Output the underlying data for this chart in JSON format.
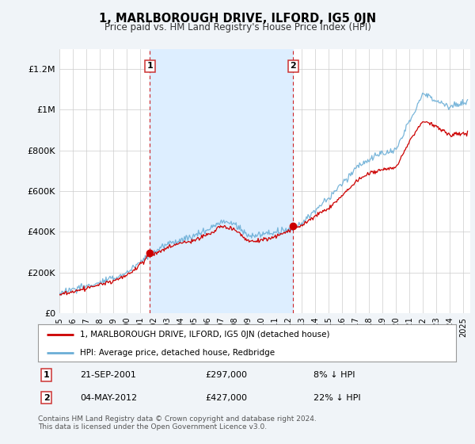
{
  "title": "1, MARLBOROUGH DRIVE, ILFORD, IG5 0JN",
  "subtitle": "Price paid vs. HM Land Registry's House Price Index (HPI)",
  "hpi_label": "HPI: Average price, detached house, Redbridge",
  "property_label": "1, MARLBOROUGH DRIVE, ILFORD, IG5 0JN (detached house)",
  "sale1_date": "21-SEP-2001",
  "sale1_price": 297000,
  "sale1_pct": "8% ↓ HPI",
  "sale1_year": 2001.72,
  "sale2_date": "04-MAY-2012",
  "sale2_price": 427000,
  "sale2_pct": "22% ↓ HPI",
  "sale2_year": 2012.35,
  "ylabel_ticks": [
    "£0",
    "£200K",
    "£400K",
    "£600K",
    "£800K",
    "£1M",
    "£1.2M"
  ],
  "ylabel_values": [
    0,
    200000,
    400000,
    600000,
    800000,
    1000000,
    1200000
  ],
  "ylim": [
    0,
    1300000
  ],
  "xlim_start": 1995.0,
  "xlim_end": 2025.5,
  "background_color": "#f0f4f8",
  "plot_bg_color": "#ffffff",
  "hpi_color": "#6baed6",
  "property_color": "#cc0000",
  "dashed_line_color": "#cc0000",
  "sale_marker_color": "#cc0000",
  "span_color": "#ddeeff",
  "grid_color": "#cccccc",
  "footnote": "Contains HM Land Registry data © Crown copyright and database right 2024.\nThis data is licensed under the Open Government Licence v3.0.",
  "hpi_ctrl_years": [
    1995,
    1996,
    1997,
    1998,
    1999,
    2000,
    2001,
    2002,
    2003,
    2004,
    2005,
    2006,
    2007,
    2008,
    2009,
    2010,
    2011,
    2012,
    2013,
    2014,
    2015,
    2016,
    2017,
    2018,
    2019,
    2020,
    2021,
    2022,
    2023,
    2024,
    2025.3
  ],
  "hpi_ctrl_vals": [
    100000,
    115000,
    130000,
    150000,
    170000,
    200000,
    250000,
    300000,
    340000,
    360000,
    380000,
    410000,
    450000,
    440000,
    380000,
    390000,
    400000,
    410000,
    450000,
    510000,
    570000,
    640000,
    720000,
    760000,
    790000,
    800000,
    950000,
    1080000,
    1050000,
    1020000,
    1040000
  ],
  "prop_ctrl_years": [
    1995,
    1996,
    1997,
    1998,
    1999,
    2000,
    2001,
    2001.72,
    2002,
    2003,
    2004,
    2005,
    2006,
    2007,
    2008,
    2009,
    2010,
    2011,
    2012,
    2012.35,
    2013,
    2014,
    2015,
    2016,
    2017,
    2018,
    2019,
    2020,
    2021,
    2022,
    2023,
    2024,
    2025.3
  ],
  "prop_ctrl_vals": [
    90000,
    105000,
    120000,
    140000,
    160000,
    185000,
    240000,
    297000,
    290000,
    320000,
    345000,
    360000,
    390000,
    430000,
    420000,
    360000,
    365000,
    380000,
    410000,
    427000,
    430000,
    480000,
    520000,
    580000,
    650000,
    690000,
    710000,
    720000,
    850000,
    950000,
    920000,
    880000,
    890000
  ],
  "hpi_noise_scale": 12000,
  "prop_noise_scale": 8000
}
